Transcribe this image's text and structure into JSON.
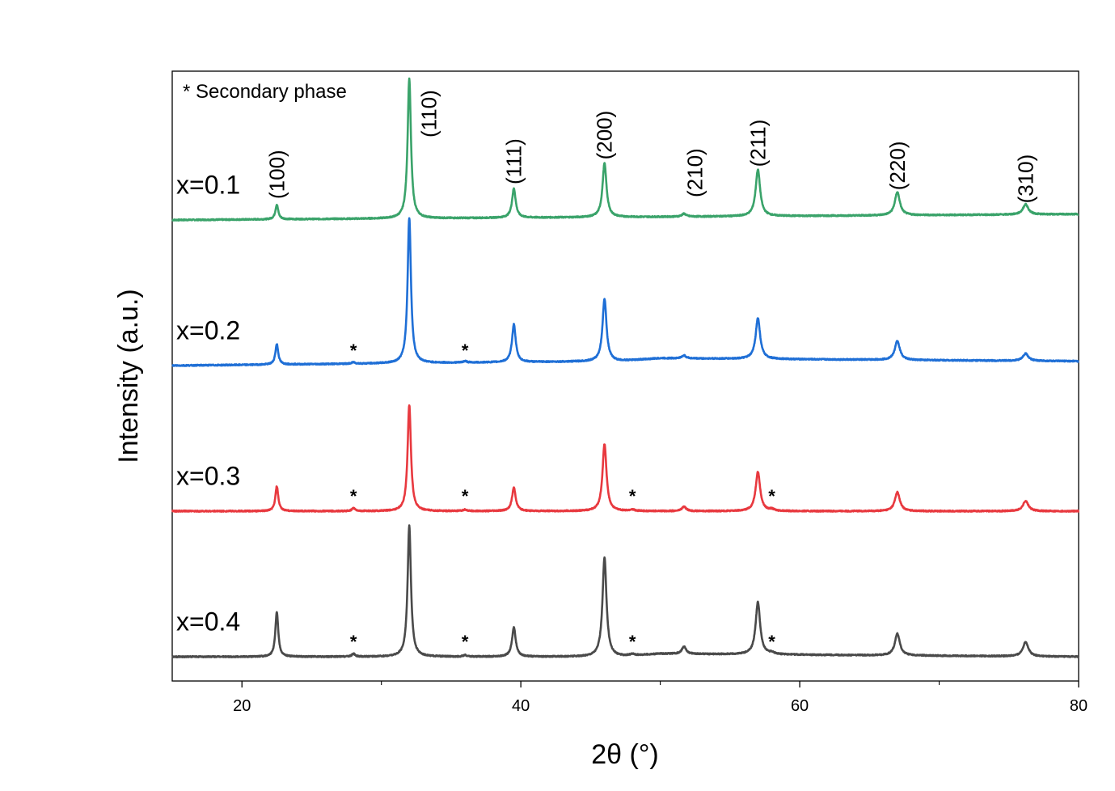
{
  "chart_data": {
    "type": "line",
    "xlabel": "2θ (°)",
    "ylabel": "Intensity (a.u.)",
    "xlim": [
      15,
      80
    ],
    "x_ticks": [
      20,
      40,
      60,
      80
    ],
    "x_tick_labels": [
      "20",
      "40",
      "60",
      "80"
    ],
    "x_minor_ticks": [
      30,
      50,
      70
    ],
    "y_ticks": [],
    "grid": false,
    "annotation": "* Secondary phase",
    "series": [
      {
        "name": "x=0.1",
        "color": "#3aa36a",
        "offset": 3.0,
        "baseline": [
          [
            15,
            0.0
          ],
          [
            80,
            0.04
          ]
        ],
        "peaks": [
          {
            "x": 22.5,
            "h": 0.1
          },
          {
            "x": 32.0,
            "h": 0.96
          },
          {
            "x": 39.5,
            "h": 0.2
          },
          {
            "x": 46.0,
            "h": 0.37
          },
          {
            "x": 51.7,
            "h": 0.02
          },
          {
            "x": 57.0,
            "h": 0.32
          },
          {
            "x": 67.0,
            "h": 0.16
          },
          {
            "x": 76.2,
            "h": 0.07
          }
        ],
        "star_positions": []
      },
      {
        "name": "x=0.2",
        "color": "#1f6fd6",
        "offset": 2.0,
        "baseline": [
          [
            15,
            0.0
          ],
          [
            47,
            0.03
          ],
          [
            50,
            0.05
          ],
          [
            80,
            0.03
          ]
        ],
        "peaks": [
          {
            "x": 22.5,
            "h": 0.14
          },
          {
            "x": 28.0,
            "h": 0.01
          },
          {
            "x": 32.0,
            "h": 1.0
          },
          {
            "x": 36.0,
            "h": 0.01
          },
          {
            "x": 39.5,
            "h": 0.26
          },
          {
            "x": 46.0,
            "h": 0.43
          },
          {
            "x": 51.7,
            "h": 0.02
          },
          {
            "x": 57.0,
            "h": 0.28
          },
          {
            "x": 67.0,
            "h": 0.13
          },
          {
            "x": 76.2,
            "h": 0.05
          }
        ],
        "star_positions": [
          28.0,
          36.0
        ]
      },
      {
        "name": "x=0.3",
        "color": "#e8393f",
        "offset": 1.0,
        "baseline": [
          [
            15,
            0.0
          ],
          [
            80,
            0.0
          ]
        ],
        "peaks": [
          {
            "x": 22.5,
            "h": 0.17
          },
          {
            "x": 28.0,
            "h": 0.02
          },
          {
            "x": 32.0,
            "h": 0.73
          },
          {
            "x": 36.0,
            "h": 0.01
          },
          {
            "x": 39.5,
            "h": 0.16
          },
          {
            "x": 46.0,
            "h": 0.46
          },
          {
            "x": 48.0,
            "h": 0.01
          },
          {
            "x": 51.7,
            "h": 0.03
          },
          {
            "x": 57.0,
            "h": 0.27
          },
          {
            "x": 58.0,
            "h": 0.01
          },
          {
            "x": 67.0,
            "h": 0.13
          },
          {
            "x": 76.2,
            "h": 0.07
          }
        ],
        "star_positions": [
          28.0,
          36.0,
          48.0,
          58.0
        ]
      },
      {
        "name": "x=0.4",
        "color": "#4a4a4a",
        "offset": 0.0,
        "baseline": [
          [
            15,
            0.0
          ],
          [
            47,
            0.0
          ],
          [
            50,
            0.02
          ],
          [
            80,
            0.0
          ]
        ],
        "peaks": [
          {
            "x": 22.5,
            "h": 0.31
          },
          {
            "x": 28.0,
            "h": 0.02
          },
          {
            "x": 32.0,
            "h": 0.9
          },
          {
            "x": 36.0,
            "h": 0.01
          },
          {
            "x": 39.5,
            "h": 0.2
          },
          {
            "x": 46.0,
            "h": 0.68
          },
          {
            "x": 48.0,
            "h": 0.01
          },
          {
            "x": 51.7,
            "h": 0.05
          },
          {
            "x": 57.0,
            "h": 0.36
          },
          {
            "x": 58.0,
            "h": 0.01
          },
          {
            "x": 67.0,
            "h": 0.15
          },
          {
            "x": 76.2,
            "h": 0.1
          }
        ],
        "star_positions": [
          28.0,
          36.0,
          48.0,
          58.0
        ]
      }
    ],
    "peak_labels": [
      {
        "label": "(100)",
        "x": 22.5
      },
      {
        "label": "(110)",
        "x": 33.4
      },
      {
        "label": "(111)",
        "x": 39.5
      },
      {
        "label": "(200)",
        "x": 46.0
      },
      {
        "label": "(210)",
        "x": 52.5
      },
      {
        "label": "(211)",
        "x": 57.0
      },
      {
        "label": "(220)",
        "x": 67.0
      },
      {
        "label": "(310)",
        "x": 76.2
      }
    ]
  }
}
